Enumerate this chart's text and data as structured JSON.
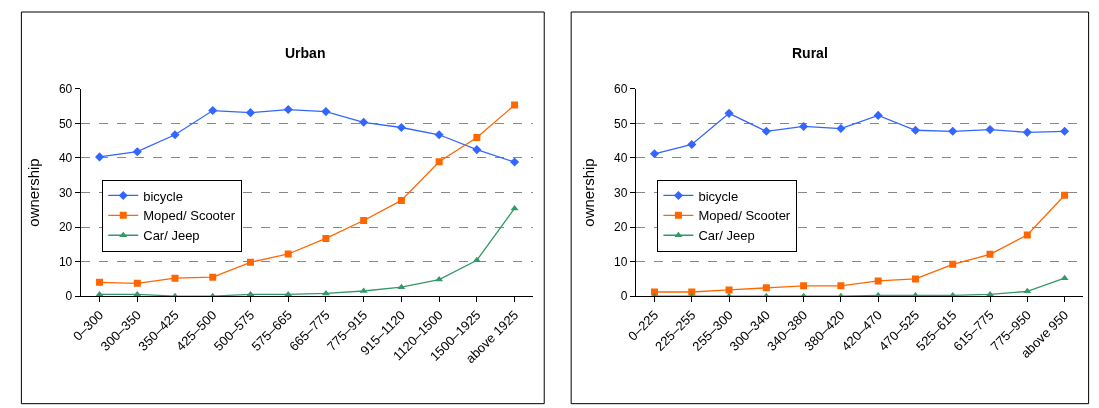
{
  "chart_data": [
    {
      "type": "line",
      "title": "Urban",
      "ylabel": "ownership",
      "categories": [
        "0–300",
        "300–350",
        "350–425",
        "425–500",
        "500–575",
        "575–665",
        "665–775",
        "775–915",
        "915–1120",
        "1120–1500",
        "1500–1925",
        "above 1925"
      ],
      "series": [
        {
          "name": "bicycle",
          "color": "#3366ff",
          "marker": "diamond",
          "values": [
            40.3,
            41.8,
            46.7,
            53.7,
            53.1,
            54.0,
            53.4,
            50.3,
            48.8,
            46.7,
            42.4,
            38.8
          ]
        },
        {
          "name": "Moped/ Scooter",
          "color": "#ff6600",
          "marker": "square",
          "values": [
            4.0,
            3.7,
            5.2,
            5.5,
            9.8,
            12.2,
            16.7,
            21.9,
            27.7,
            38.9,
            45.9,
            55.3
          ]
        },
        {
          "name": "Car/ Jeep",
          "color": "#339966",
          "marker": "triangle",
          "values": [
            0.5,
            0.5,
            0,
            0,
            0.5,
            0.5,
            0.8,
            1.5,
            2.6,
            4.8,
            10.4,
            25.4
          ]
        }
      ],
      "ylim": [
        0,
        60
      ],
      "yticks": [
        0,
        10,
        20,
        30,
        40,
        50,
        60
      ],
      "grid": "y",
      "legend": "left",
      "line_style": "solid"
    },
    {
      "type": "line",
      "title": "Rural",
      "ylabel": "ownership",
      "categories": [
        "0–225",
        "225–255",
        "255–300",
        "300–340",
        "340–380",
        "380–420",
        "420–470",
        "470–525",
        "525–615",
        "615–775",
        "775–950",
        "above 950"
      ],
      "series": [
        {
          "name": "bicycle",
          "color": "#3366ff",
          "marker": "diamond",
          "values": [
            41.2,
            43.9,
            52.9,
            47.7,
            49.1,
            48.5,
            52.3,
            48.0,
            47.7,
            48.2,
            47.4,
            47.7
          ]
        },
        {
          "name": "Moped/ Scooter",
          "color": "#ff6600",
          "marker": "square",
          "values": [
            1.2,
            1.2,
            1.8,
            2.4,
            3.0,
            3.0,
            4.4,
            5.0,
            9.2,
            12.1,
            17.7,
            29.2
          ]
        },
        {
          "name": "Car/ Jeep",
          "color": "#339966",
          "marker": "triangle",
          "values": [
            0,
            0,
            0,
            0,
            0,
            0,
            0.2,
            0.2,
            0.2,
            0.5,
            1.4,
            5.2
          ]
        }
      ],
      "ylim": [
        0,
        60
      ],
      "yticks": [
        0,
        10,
        20,
        30,
        40,
        50,
        60
      ],
      "grid": "y",
      "legend": "left",
      "line_style": "solid"
    }
  ]
}
